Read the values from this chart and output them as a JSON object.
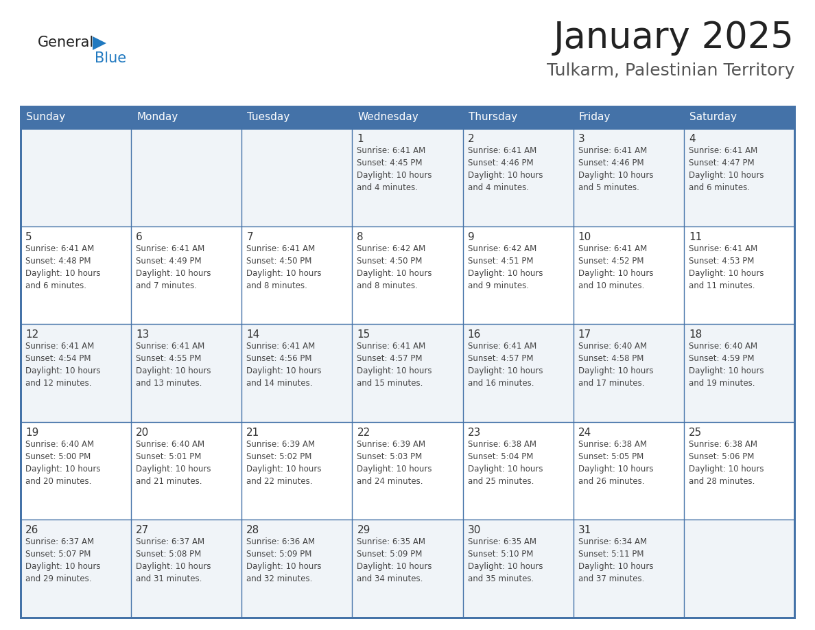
{
  "title": "January 2025",
  "subtitle": "Tulkarm, Palestinian Territory",
  "days_of_week": [
    "Sunday",
    "Monday",
    "Tuesday",
    "Wednesday",
    "Thursday",
    "Friday",
    "Saturday"
  ],
  "header_bg": "#4472A8",
  "header_text_color": "#FFFFFF",
  "cell_bg_even": "#FFFFFF",
  "cell_bg_odd": "#F0F4F8",
  "border_color": "#4472A8",
  "day_num_color": "#333333",
  "cell_text_color": "#444444",
  "title_color": "#222222",
  "subtitle_color": "#555555",
  "logo_general_color": "#222222",
  "logo_blue_color": "#2079C0",
  "calendar": [
    [
      {
        "day": null,
        "info": null
      },
      {
        "day": null,
        "info": null
      },
      {
        "day": null,
        "info": null
      },
      {
        "day": 1,
        "info": "Sunrise: 6:41 AM\nSunset: 4:45 PM\nDaylight: 10 hours\nand 4 minutes."
      },
      {
        "day": 2,
        "info": "Sunrise: 6:41 AM\nSunset: 4:46 PM\nDaylight: 10 hours\nand 4 minutes."
      },
      {
        "day": 3,
        "info": "Sunrise: 6:41 AM\nSunset: 4:46 PM\nDaylight: 10 hours\nand 5 minutes."
      },
      {
        "day": 4,
        "info": "Sunrise: 6:41 AM\nSunset: 4:47 PM\nDaylight: 10 hours\nand 6 minutes."
      }
    ],
    [
      {
        "day": 5,
        "info": "Sunrise: 6:41 AM\nSunset: 4:48 PM\nDaylight: 10 hours\nand 6 minutes."
      },
      {
        "day": 6,
        "info": "Sunrise: 6:41 AM\nSunset: 4:49 PM\nDaylight: 10 hours\nand 7 minutes."
      },
      {
        "day": 7,
        "info": "Sunrise: 6:41 AM\nSunset: 4:50 PM\nDaylight: 10 hours\nand 8 minutes."
      },
      {
        "day": 8,
        "info": "Sunrise: 6:42 AM\nSunset: 4:50 PM\nDaylight: 10 hours\nand 8 minutes."
      },
      {
        "day": 9,
        "info": "Sunrise: 6:42 AM\nSunset: 4:51 PM\nDaylight: 10 hours\nand 9 minutes."
      },
      {
        "day": 10,
        "info": "Sunrise: 6:41 AM\nSunset: 4:52 PM\nDaylight: 10 hours\nand 10 minutes."
      },
      {
        "day": 11,
        "info": "Sunrise: 6:41 AM\nSunset: 4:53 PM\nDaylight: 10 hours\nand 11 minutes."
      }
    ],
    [
      {
        "day": 12,
        "info": "Sunrise: 6:41 AM\nSunset: 4:54 PM\nDaylight: 10 hours\nand 12 minutes."
      },
      {
        "day": 13,
        "info": "Sunrise: 6:41 AM\nSunset: 4:55 PM\nDaylight: 10 hours\nand 13 minutes."
      },
      {
        "day": 14,
        "info": "Sunrise: 6:41 AM\nSunset: 4:56 PM\nDaylight: 10 hours\nand 14 minutes."
      },
      {
        "day": 15,
        "info": "Sunrise: 6:41 AM\nSunset: 4:57 PM\nDaylight: 10 hours\nand 15 minutes."
      },
      {
        "day": 16,
        "info": "Sunrise: 6:41 AM\nSunset: 4:57 PM\nDaylight: 10 hours\nand 16 minutes."
      },
      {
        "day": 17,
        "info": "Sunrise: 6:40 AM\nSunset: 4:58 PM\nDaylight: 10 hours\nand 17 minutes."
      },
      {
        "day": 18,
        "info": "Sunrise: 6:40 AM\nSunset: 4:59 PM\nDaylight: 10 hours\nand 19 minutes."
      }
    ],
    [
      {
        "day": 19,
        "info": "Sunrise: 6:40 AM\nSunset: 5:00 PM\nDaylight: 10 hours\nand 20 minutes."
      },
      {
        "day": 20,
        "info": "Sunrise: 6:40 AM\nSunset: 5:01 PM\nDaylight: 10 hours\nand 21 minutes."
      },
      {
        "day": 21,
        "info": "Sunrise: 6:39 AM\nSunset: 5:02 PM\nDaylight: 10 hours\nand 22 minutes."
      },
      {
        "day": 22,
        "info": "Sunrise: 6:39 AM\nSunset: 5:03 PM\nDaylight: 10 hours\nand 24 minutes."
      },
      {
        "day": 23,
        "info": "Sunrise: 6:38 AM\nSunset: 5:04 PM\nDaylight: 10 hours\nand 25 minutes."
      },
      {
        "day": 24,
        "info": "Sunrise: 6:38 AM\nSunset: 5:05 PM\nDaylight: 10 hours\nand 26 minutes."
      },
      {
        "day": 25,
        "info": "Sunrise: 6:38 AM\nSunset: 5:06 PM\nDaylight: 10 hours\nand 28 minutes."
      }
    ],
    [
      {
        "day": 26,
        "info": "Sunrise: 6:37 AM\nSunset: 5:07 PM\nDaylight: 10 hours\nand 29 minutes."
      },
      {
        "day": 27,
        "info": "Sunrise: 6:37 AM\nSunset: 5:08 PM\nDaylight: 10 hours\nand 31 minutes."
      },
      {
        "day": 28,
        "info": "Sunrise: 6:36 AM\nSunset: 5:09 PM\nDaylight: 10 hours\nand 32 minutes."
      },
      {
        "day": 29,
        "info": "Sunrise: 6:35 AM\nSunset: 5:09 PM\nDaylight: 10 hours\nand 34 minutes."
      },
      {
        "day": 30,
        "info": "Sunrise: 6:35 AM\nSunset: 5:10 PM\nDaylight: 10 hours\nand 35 minutes."
      },
      {
        "day": 31,
        "info": "Sunrise: 6:34 AM\nSunset: 5:11 PM\nDaylight: 10 hours\nand 37 minutes."
      },
      {
        "day": null,
        "info": null
      }
    ]
  ]
}
